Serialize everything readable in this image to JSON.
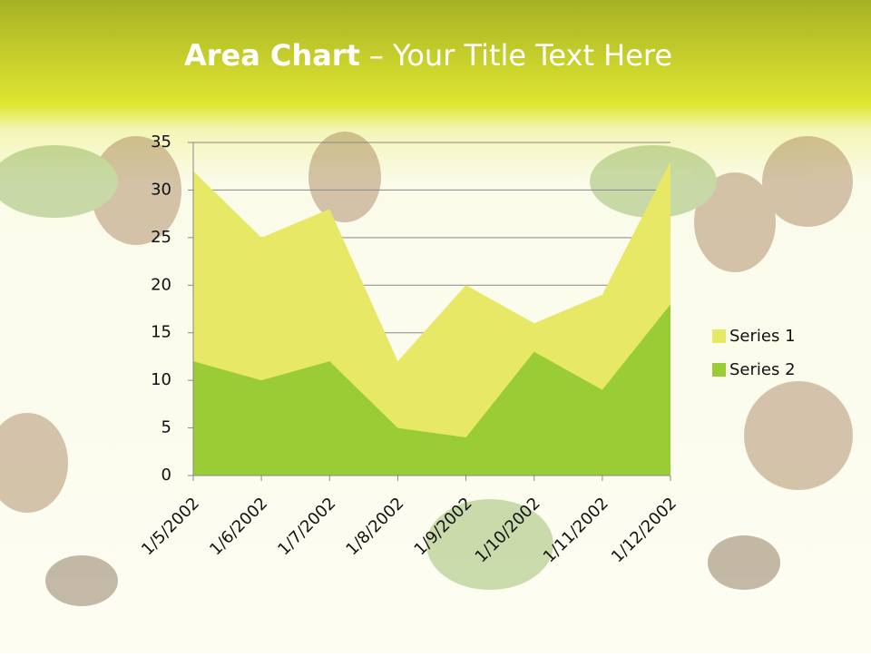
{
  "chart_data": {
    "type": "area",
    "title": {
      "emphasis": "Area Chart",
      "text": "– Your Title Text Here"
    },
    "categories": [
      "1/5/2002",
      "1/6/2002",
      "1/7/2002",
      "1/8/2002",
      "1/9/2002",
      "1/10/2002",
      "1/11/2002",
      "1/12/2002"
    ],
    "series": [
      {
        "name": "Series 1",
        "color": "#e6e866",
        "values": [
          32,
          25,
          28,
          12,
          20,
          16,
          19,
          33
        ]
      },
      {
        "name": "Series 2",
        "color": "#9acd35",
        "values": [
          12,
          10,
          12,
          5,
          4,
          13,
          9,
          18
        ]
      }
    ],
    "ylim": [
      0,
      35
    ],
    "yticks": [
      0,
      5,
      10,
      15,
      20,
      25,
      30,
      35
    ],
    "grid": true,
    "legend": "right"
  }
}
